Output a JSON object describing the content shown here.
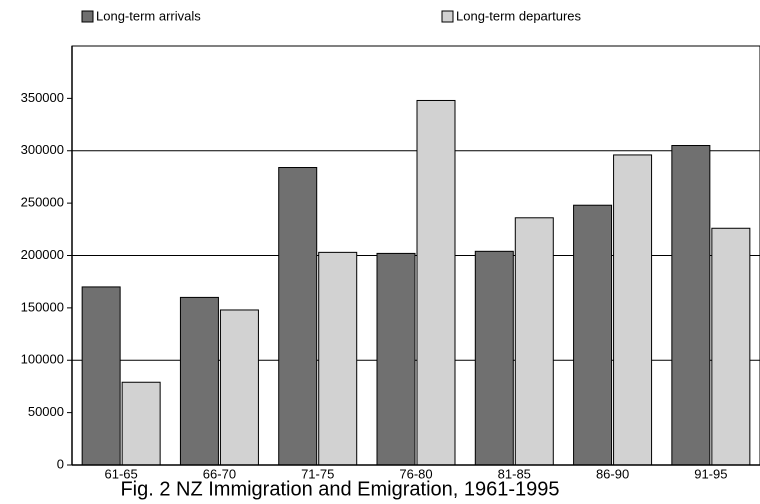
{
  "chart_data": {
    "type": "bar",
    "title": "Fig. 2 NZ Immigration and Emigration, 1961-1995",
    "categories": [
      "61-65",
      "66-70",
      "71-75",
      "76-80",
      "81-85",
      "86-90",
      "91-95"
    ],
    "series": [
      {
        "name": "Long-term arrivals",
        "color": "#707070",
        "values": [
          170000,
          160000,
          284000,
          202000,
          204000,
          248000,
          305000
        ]
      },
      {
        "name": "Long-term departures",
        "color": "#d2d2d2",
        "values": [
          79000,
          148000,
          203000,
          348000,
          236000,
          296000,
          226000
        ]
      }
    ],
    "ylim": [
      0,
      400000
    ],
    "yticks": [
      0,
      50000,
      100000,
      150000,
      200000,
      250000,
      300000,
      350000
    ],
    "ygrid": [
      100000,
      200000,
      300000
    ]
  }
}
